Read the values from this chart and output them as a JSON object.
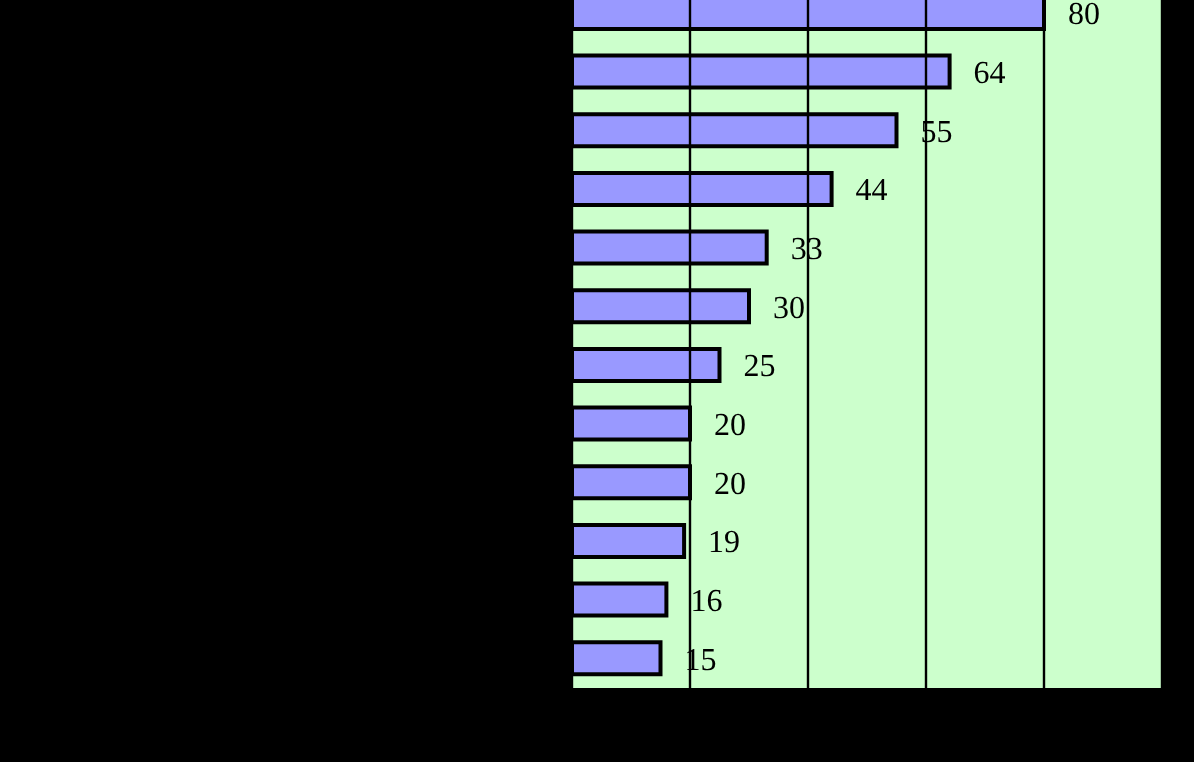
{
  "chart_data": {
    "type": "bar",
    "orientation": "horizontal",
    "categories": [
      null,
      null,
      null,
      null,
      null,
      null,
      null,
      null,
      null,
      null,
      null,
      null
    ],
    "values": [
      80,
      64,
      55,
      44,
      33,
      30,
      25,
      20,
      20,
      19,
      16,
      15
    ],
    "color": "#9999ff",
    "xlim": [
      0,
      100
    ],
    "xticks": [
      {
        "value": 0,
        "label": null
      },
      {
        "value": 20,
        "label": null
      },
      {
        "value": 40,
        "label": null
      },
      {
        "value": 60,
        "label": null
      },
      {
        "value": 80,
        "label": null
      },
      {
        "value": 100,
        "label": null
      }
    ],
    "grid": "x",
    "data_labels": true
  }
}
